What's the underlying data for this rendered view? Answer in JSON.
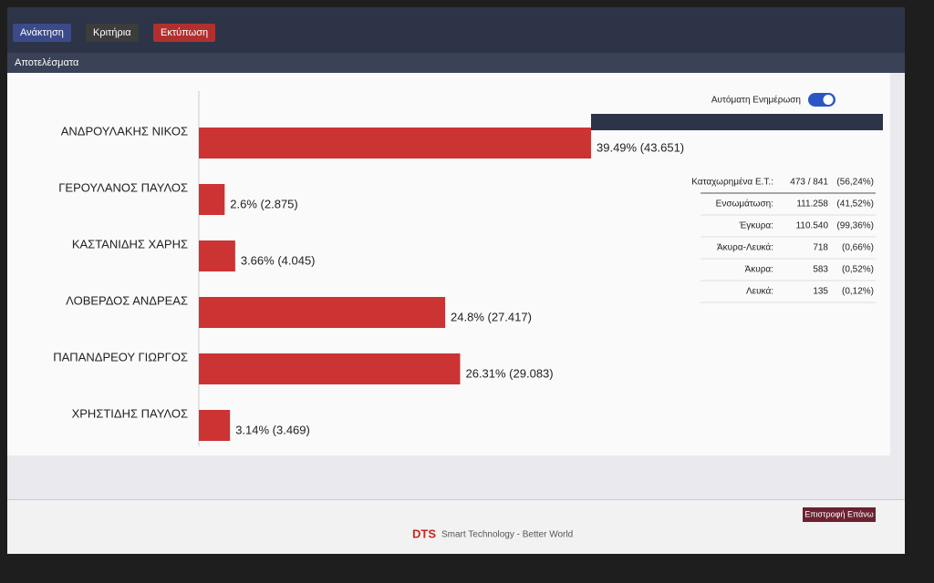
{
  "toolbar": {
    "buttons": [
      "Ανάκτηση",
      "Κριτήρια",
      "Εκτύπωση"
    ]
  },
  "panel_title": "Αποτελέσματα",
  "auto_update": "Αυτόματη Ενημέρωση",
  "chart_data": {
    "type": "bar",
    "orientation": "horizontal",
    "categories": [
      "ΑΝΔΡΟΥΛΑΚΗΣ ΝΙΚΟΣ",
      "ΓΕΡΟΥΛΑΝΟΣ ΠΑΥΛΟΣ",
      "ΚΑΣΤΑΝΙΔΗΣ ΧΑΡΗΣ",
      "ΛΟΒΕΡΔΟΣ ΑΝΔΡΕΑΣ",
      "ΠΑΠΑΝΔΡΕΟΥ ΓΙΩΡΓΟΣ",
      "ΧΡΗΣΤΙΔΗΣ ΠΑΥΛΟΣ"
    ],
    "values": [
      39.49,
      2.6,
      3.66,
      24.8,
      26.31,
      3.14
    ],
    "value_labels": [
      "39.49% (43.651)",
      "2.6% (2.875)",
      "3.66% (4.045)",
      "24.8% (27.417)",
      "26.31% (29.083)",
      "3.14% (3.469)"
    ],
    "color": "#cc3333"
  },
  "stats": {
    "rows": [
      [
        "Καταχωρημένα Ε.Τ.:",
        "473 / 841",
        "(56,24%)"
      ],
      [
        "Ενσωμάτωση:",
        "111.258",
        "(41,52%)"
      ],
      [
        "Έγκυρα:",
        "110.540",
        "(99,36%)"
      ],
      [
        "Άκυρα-Λευκά:",
        "718",
        "(0,66%)"
      ],
      [
        "Άκυρα:",
        "583",
        "(0,52%)"
      ],
      [
        "Λευκά:",
        "135",
        "(0,12%)"
      ]
    ]
  },
  "footer": {
    "back_button": "Επιστροφή Επάνω",
    "brand": "DTS",
    "tagline": "Smart Technology - Better World"
  }
}
